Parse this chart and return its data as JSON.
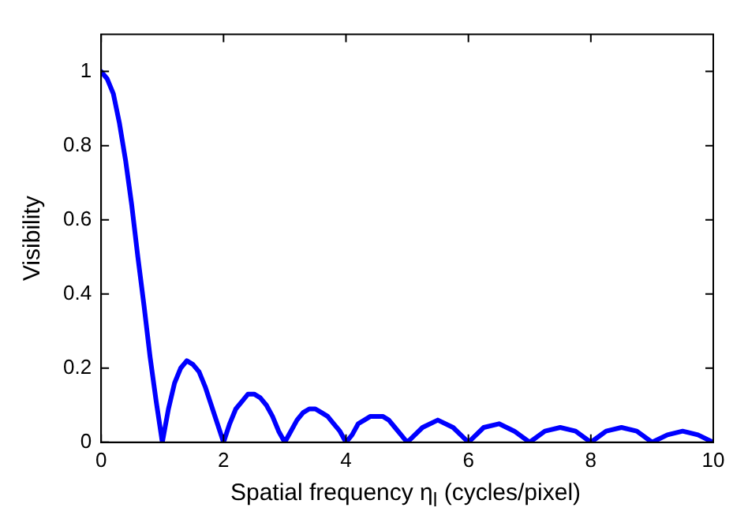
{
  "chart_data": {
    "type": "line",
    "xlabel": "Spatial frequency η$_{l}$ (cycles/pixel)",
    "ylabel": "Visibility",
    "xlim": [
      0,
      10
    ],
    "xticks": [
      0,
      2,
      4,
      6,
      8,
      10
    ],
    "ylim": [
      0,
      1.1
    ],
    "yticks": [
      0,
      0.2,
      0.4,
      0.6,
      0.8,
      1
    ],
    "grid": false,
    "marker": "none",
    "line_style": "solid",
    "series": [
      {
        "color": "#0000ff",
        "x": [
          0,
          0.1,
          0.2,
          0.3,
          0.4,
          0.5,
          0.6,
          0.7,
          0.8,
          0.9,
          1,
          1.1,
          1.2,
          1.3,
          1.4,
          1.5,
          1.6,
          1.7,
          1.8,
          1.9,
          2,
          2.1,
          2.2,
          2.3,
          2.4,
          2.5,
          2.6,
          2.7,
          2.8,
          2.9,
          3,
          3.1,
          3.2,
          3.3,
          3.4,
          3.5,
          3.6,
          3.7,
          3.8,
          3.9,
          4,
          4.1,
          4.2,
          4.3,
          4.4,
          4.5,
          4.6,
          4.7,
          4.8,
          4.9,
          5,
          5.25,
          5.5,
          5.75,
          6,
          6.25,
          6.5,
          6.75,
          7,
          7.25,
          7.5,
          7.75,
          8,
          8.25,
          8.5,
          8.75,
          9,
          9.25,
          9.5,
          9.75,
          10
        ],
        "values": [
          1,
          0.98,
          0.94,
          0.86,
          0.76,
          0.64,
          0.5,
          0.37,
          0.23,
          0.11,
          0,
          0.09,
          0.16,
          0.2,
          0.22,
          0.21,
          0.19,
          0.15,
          0.1,
          0.05,
          0,
          0.05,
          0.09,
          0.11,
          0.13,
          0.13,
          0.12,
          0.1,
          0.07,
          0.03,
          0,
          0.03,
          0.06,
          0.08,
          0.09,
          0.09,
          0.08,
          0.07,
          0.05,
          0.03,
          0,
          0.02,
          0.05,
          0.06,
          0.07,
          0.07,
          0.07,
          0.06,
          0.04,
          0.02,
          0,
          0.04,
          0.06,
          0.04,
          0,
          0.04,
          0.05,
          0.03,
          0,
          0.03,
          0.04,
          0.03,
          0,
          0.03,
          0.04,
          0.03,
          0,
          0.02,
          0.03,
          0.02,
          0
        ]
      }
    ]
  }
}
